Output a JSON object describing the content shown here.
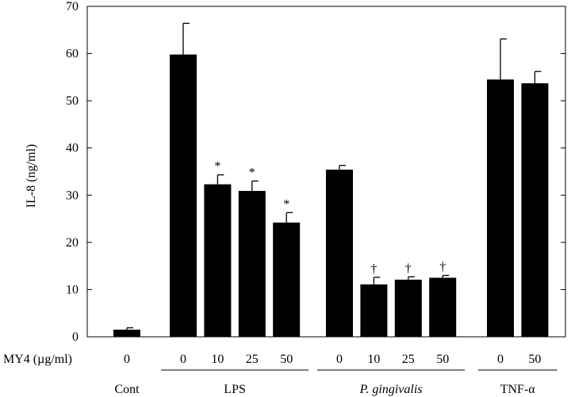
{
  "chart_data": {
    "type": "bar",
    "ylabel": "IL-8 (ng/ml)",
    "ylim": [
      0,
      70
    ],
    "yticks": [
      0,
      10,
      20,
      30,
      40,
      50,
      60,
      70
    ],
    "x_row_label": "MY4 (µg/ml)",
    "bar_color": "#000000",
    "groups": [
      {
        "name": "Cont",
        "italic": false,
        "underline": false,
        "categories": [
          "0"
        ],
        "values": [
          1.5
        ],
        "errors": [
          0.4
        ],
        "markers": [
          ""
        ]
      },
      {
        "name": "LPS",
        "italic": false,
        "underline": true,
        "categories": [
          "0",
          "10",
          "25",
          "50"
        ],
        "values": [
          59.8,
          32.3,
          30.9,
          24.2
        ],
        "errors": [
          6.6,
          2.0,
          2.1,
          2.1
        ],
        "markers": [
          "",
          "*",
          "*",
          "*"
        ]
      },
      {
        "name": "P. gingivalis",
        "italic": true,
        "underline": true,
        "categories": [
          "0",
          "10",
          "25",
          "50"
        ],
        "values": [
          35.4,
          11.1,
          12.1,
          12.5
        ],
        "errors": [
          0.9,
          1.5,
          0.6,
          0.5
        ],
        "markers": [
          "",
          "†",
          "†",
          "†"
        ]
      },
      {
        "name": "TNF-α",
        "italic": false,
        "underline": true,
        "categories": [
          "0",
          "50"
        ],
        "values": [
          54.5,
          53.7
        ],
        "errors": [
          8.6,
          2.5
        ],
        "markers": [
          "",
          ""
        ]
      }
    ]
  }
}
